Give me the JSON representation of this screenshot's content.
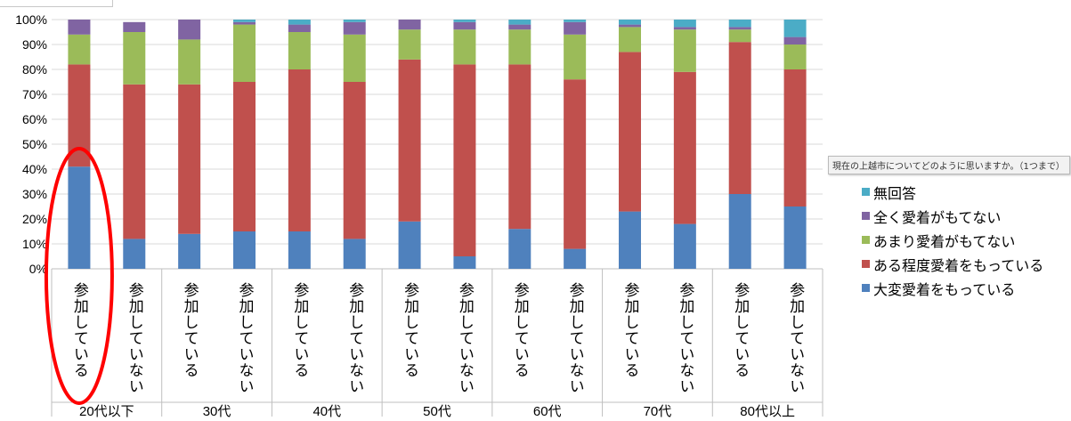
{
  "chart_data": {
    "type": "bar",
    "stacked": true,
    "percent_axis": true,
    "ylim": [
      0,
      100
    ],
    "y_ticks": [
      "0%",
      "10%",
      "20%",
      "30%",
      "40%",
      "50%",
      "60%",
      "70%",
      "80%",
      "90%",
      "100%"
    ],
    "groups": [
      {
        "label": "20代以下",
        "categories": [
          "参加している",
          "参加していない"
        ]
      },
      {
        "label": "30代",
        "categories": [
          "参加している",
          "参加していない"
        ]
      },
      {
        "label": "40代",
        "categories": [
          "参加している",
          "参加していない"
        ]
      },
      {
        "label": "50代",
        "categories": [
          "参加している",
          "参加していない"
        ]
      },
      {
        "label": "60代",
        "categories": [
          "参加している",
          "参加していない"
        ]
      },
      {
        "label": "70代",
        "categories": [
          "参加している",
          "参加していない"
        ]
      },
      {
        "label": "80代以上",
        "categories": [
          "参加している",
          "参加していない"
        ]
      }
    ],
    "legend_title": "現在の上越市についてどのように思いますか。（1つまで）",
    "legend_position": "right",
    "series": [
      {
        "name": "大変愛着をもっている",
        "color": "#4f81bd",
        "values": [
          41,
          12,
          14,
          15,
          15,
          12,
          19,
          5,
          16,
          8,
          23,
          18,
          30,
          25
        ]
      },
      {
        "name": "ある程度愛着をもっている",
        "color": "#c0504d",
        "values": [
          41,
          62,
          60,
          60,
          65,
          63,
          65,
          77,
          66,
          68,
          64,
          61,
          61,
          55
        ]
      },
      {
        "name": "あまり愛着がもてない",
        "color": "#9bbb59",
        "values": [
          12,
          21,
          18,
          23,
          15,
          19,
          12,
          14,
          14,
          18,
          10,
          17,
          5,
          10
        ]
      },
      {
        "name": "全く愛着がもてない",
        "color": "#8064a2",
        "values": [
          6,
          4,
          8,
          1,
          3,
          5,
          4,
          3,
          2,
          5,
          1,
          1,
          1,
          3
        ]
      },
      {
        "name": "無回答",
        "color": "#4bacc6",
        "values": [
          0,
          0,
          0,
          1,
          2,
          1,
          0,
          1,
          2,
          1,
          2,
          3,
          3,
          7
        ]
      }
    ],
    "highlight": {
      "description": "red ellipse",
      "group_index": 0,
      "category_index": 0,
      "color": "#ff0000"
    }
  }
}
